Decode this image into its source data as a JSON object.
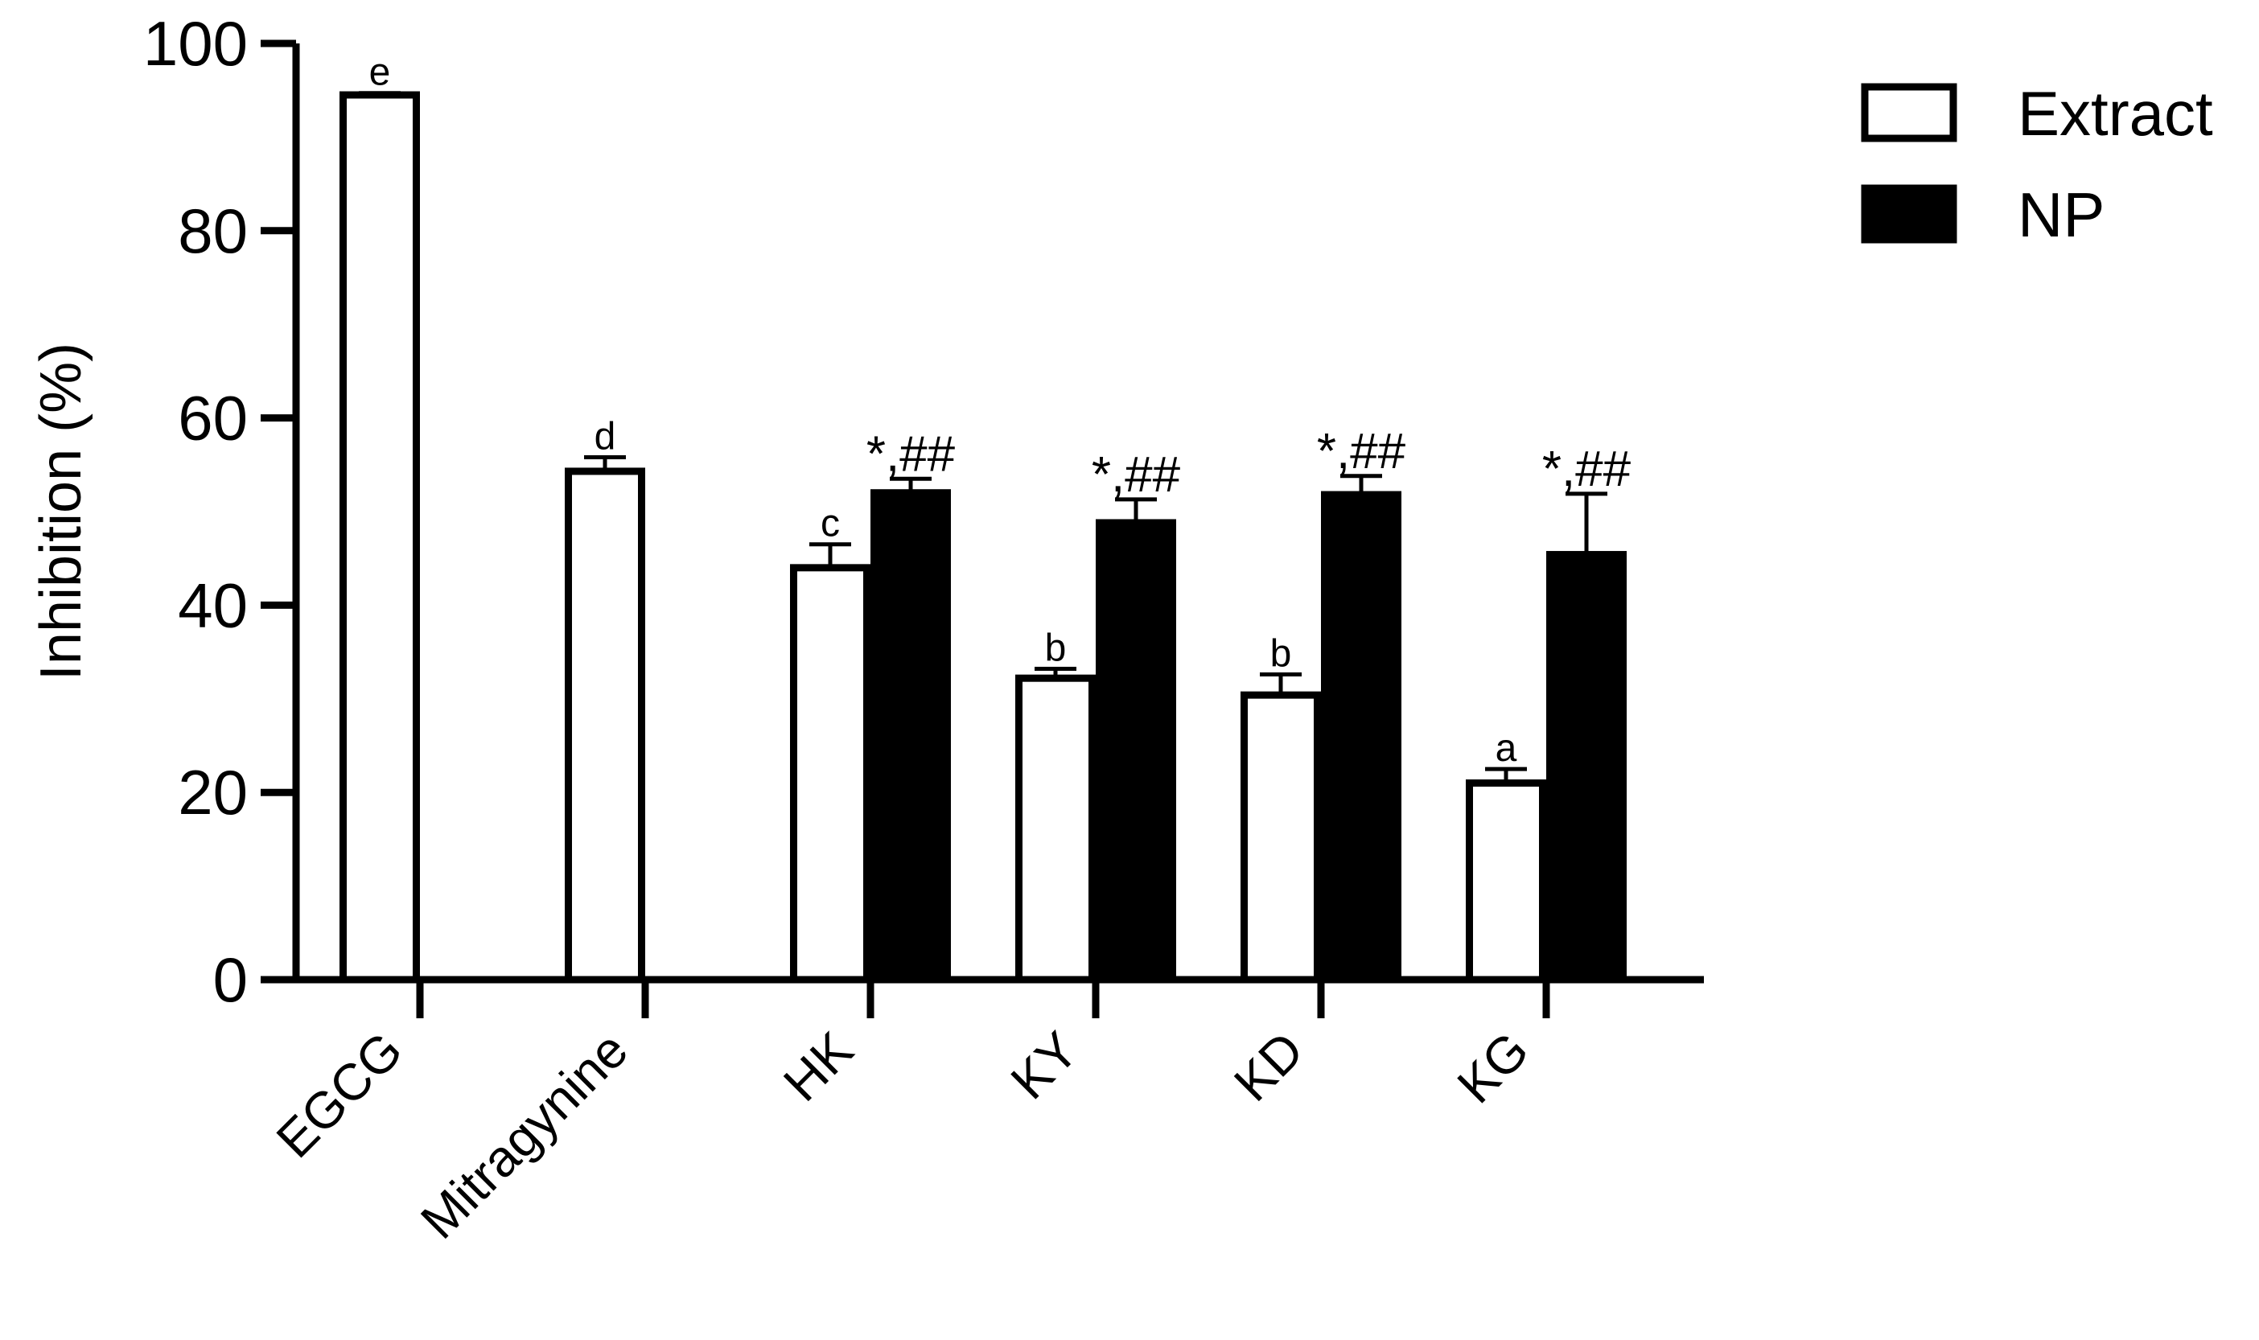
{
  "chart_data": {
    "type": "bar",
    "title": "",
    "xlabel": "",
    "ylabel": "Inhibition (%)",
    "ylim": [
      0,
      100
    ],
    "yticks": [
      0,
      20,
      40,
      60,
      80,
      100
    ],
    "grid": false,
    "legend_position": "top-right",
    "categories": [
      "EGCG",
      "Mitragynine",
      "HK",
      "KY",
      "KD",
      "KG"
    ],
    "series": [
      {
        "name": "Extract",
        "color": "#ffffff",
        "values": [
          94.5,
          54.3,
          44.0,
          32.2,
          30.4,
          21.0
        ],
        "errors": [
          0.2,
          1.5,
          2.5,
          1.0,
          2.2,
          1.5
        ],
        "annotations": [
          "e",
          "d",
          "c",
          "b",
          "b",
          "a"
        ]
      },
      {
        "name": "NP",
        "color": "#000000",
        "values": [
          null,
          null,
          52.0,
          48.8,
          51.8,
          45.4
        ],
        "errors": [
          null,
          null,
          1.5,
          2.5,
          2.0,
          6.5
        ],
        "annotations": [
          "",
          "",
          "*,##",
          "*,##",
          "*,##",
          "*,##"
        ]
      }
    ]
  }
}
